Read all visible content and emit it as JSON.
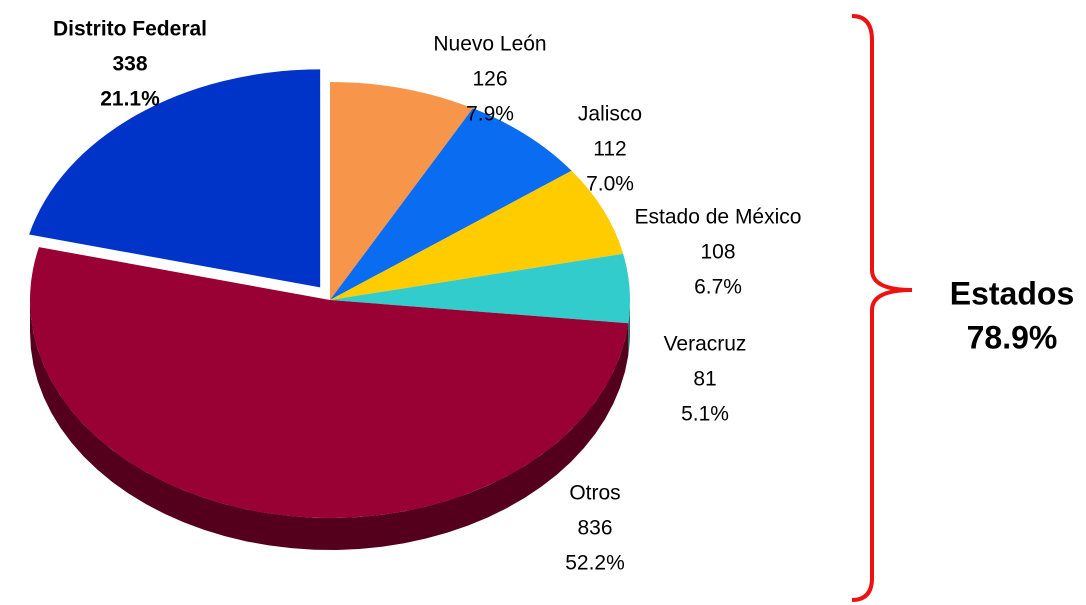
{
  "chart_data": {
    "type": "pie",
    "categories": [
      "Distrito Federal",
      "Nuevo León",
      "Jalisco",
      "Estado de México",
      "Veracruz",
      "Otros"
    ],
    "counts": [
      338,
      126,
      112,
      108,
      81,
      836
    ],
    "values": [
      21.1,
      7.9,
      7.0,
      6.7,
      5.1,
      52.2
    ],
    "value_labels": [
      "21.1%",
      "7.9%",
      "7.0%",
      "6.7%",
      "5.1%",
      "52.2%"
    ],
    "colors": [
      "#0033c8",
      "#f7964a",
      "#0a6cf0",
      "#ffcc00",
      "#33cccc",
      "#990033"
    ],
    "annotation": {
      "title": "Estados",
      "label": "78.9%"
    }
  }
}
